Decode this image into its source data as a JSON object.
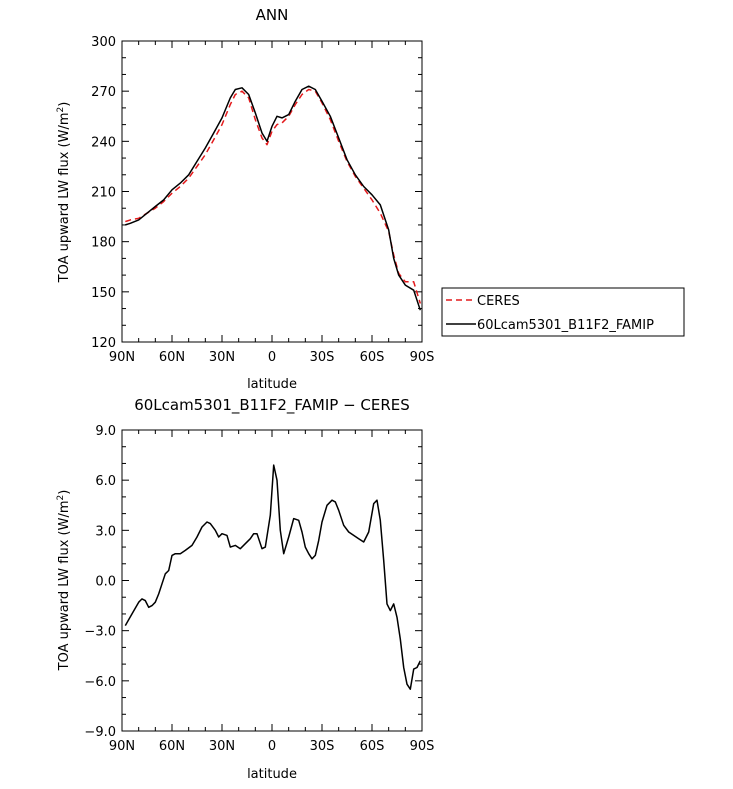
{
  "chart_data": [
    {
      "type": "line",
      "title": "ANN",
      "xlabel": "latitude",
      "ylabel": "TOA upward LW flux (W/m²)",
      "ylabel_base": "TOA upward LW flux (W/m",
      "ylabel_sup": "2",
      "ylabel_end": ")",
      "xlim": [
        90,
        -90
      ],
      "ylim": [
        120,
        300
      ],
      "xticks": [
        90,
        60,
        30,
        0,
        -30,
        -60,
        -90
      ],
      "xtick_labels": [
        "90N",
        "60N",
        "30N",
        "0",
        "30S",
        "60S",
        "90S"
      ],
      "yticks": [
        120,
        150,
        180,
        210,
        240,
        270,
        300
      ],
      "ytick_labels": [
        "120",
        "150",
        "180",
        "210",
        "240",
        "270",
        "300"
      ],
      "legend": {
        "placement": "right",
        "entries": [
          "CERES",
          "60Lcam5301_B11F2_FAMIP"
        ]
      },
      "series": [
        {
          "name": "CERES",
          "color": "#e41a1c",
          "dash": true,
          "x": [
            88,
            85,
            80,
            75,
            70,
            65,
            60,
            55,
            50,
            45,
            40,
            35,
            30,
            25,
            22,
            18,
            14,
            10,
            6,
            3,
            0,
            -3,
            -6,
            -10,
            -14,
            -18,
            -22,
            -26,
            -30,
            -35,
            -40,
            -45,
            -50,
            -55,
            -60,
            -65,
            -70,
            -73,
            -76,
            -80,
            -85,
            -89
          ],
          "y": [
            192,
            193,
            194,
            197,
            200,
            204,
            209,
            213,
            218,
            225,
            232,
            241,
            250,
            262,
            268,
            270,
            266,
            253,
            242,
            238,
            246,
            250,
            251,
            255,
            262,
            268,
            271,
            270,
            263,
            253,
            240,
            228,
            219,
            212,
            205,
            197,
            186,
            172,
            161,
            156,
            156,
            143
          ]
        },
        {
          "name": "60Lcam5301_B11F2_FAMIP",
          "color": "#000000",
          "dash": false,
          "x": [
            88,
            85,
            80,
            75,
            70,
            65,
            60,
            55,
            50,
            45,
            40,
            35,
            30,
            25,
            22,
            18,
            14,
            10,
            6,
            3,
            0,
            -3,
            -6,
            -10,
            -14,
            -18,
            -22,
            -26,
            -30,
            -35,
            -40,
            -45,
            -50,
            -55,
            -60,
            -65,
            -70,
            -73,
            -76,
            -80,
            -85,
            -89
          ],
          "y": [
            190,
            191,
            193,
            197,
            201,
            205,
            211,
            215,
            220,
            228,
            236,
            245,
            254,
            266,
            271,
            272,
            268,
            257,
            245,
            240,
            249,
            255,
            254,
            256,
            264,
            271,
            273,
            271,
            264,
            255,
            242,
            229,
            220,
            213,
            208,
            202,
            187,
            170,
            160,
            154,
            151,
            139
          ]
        }
      ]
    },
    {
      "type": "line",
      "title": "60Lcam5301_B11F2_FAMIP − CERES",
      "xlabel": "latitude",
      "ylabel": "TOA upward LW flux (W/m²)",
      "ylabel_base": "TOA upward LW flux (W/m",
      "ylabel_sup": "2",
      "ylabel_end": ")",
      "xlim": [
        90,
        -90
      ],
      "ylim": [
        -9,
        9
      ],
      "xticks": [
        90,
        60,
        30,
        0,
        -30,
        -60,
        -90
      ],
      "xtick_labels": [
        "90N",
        "60N",
        "30N",
        "0",
        "30S",
        "60S",
        "90S"
      ],
      "yticks": [
        -9,
        -6,
        -3,
        0,
        3,
        6,
        9
      ],
      "ytick_labels": [
        "−9.0",
        "−6.0",
        "−3.0",
        "0.0",
        "3.0",
        "6.0",
        "9.0"
      ],
      "series": [
        {
          "color": "#000000",
          "dash": false,
          "x": [
            88,
            84,
            80,
            78,
            76,
            74,
            72,
            70,
            68,
            66,
            64,
            62,
            60,
            58,
            55,
            52,
            48,
            45,
            42,
            39,
            37,
            34,
            32,
            30,
            27,
            25,
            22,
            19,
            16,
            13,
            11,
            9,
            6,
            4,
            1,
            -1,
            -3,
            -5,
            -7,
            -10,
            -13,
            -16,
            -18,
            -20,
            -22,
            -24,
            -26,
            -28,
            -30,
            -33,
            -36,
            -38,
            -40,
            -43,
            -46,
            -49,
            -52,
            -55,
            -58,
            -61,
            -63,
            -65,
            -67,
            -69,
            -71,
            -73,
            -75,
            -77,
            -79,
            -81,
            -83,
            -85,
            -87,
            -89
          ],
          "y": [
            -2.7,
            -2.0,
            -1.3,
            -1.1,
            -1.2,
            -1.6,
            -1.5,
            -1.3,
            -0.8,
            -0.2,
            0.4,
            0.6,
            1.5,
            1.6,
            1.6,
            1.8,
            2.1,
            2.6,
            3.2,
            3.5,
            3.4,
            3.0,
            2.6,
            2.8,
            2.7,
            2.0,
            2.1,
            1.9,
            2.2,
            2.5,
            2.8,
            2.8,
            1.9,
            2.0,
            3.9,
            6.9,
            6.0,
            3.0,
            1.6,
            2.6,
            3.7,
            3.6,
            2.9,
            2.0,
            1.6,
            1.3,
            1.5,
            2.4,
            3.5,
            4.5,
            4.8,
            4.7,
            4.2,
            3.3,
            2.9,
            2.7,
            2.5,
            2.3,
            2.9,
            4.6,
            4.8,
            3.6,
            1.2,
            -1.4,
            -1.8,
            -1.4,
            -2.2,
            -3.5,
            -5.2,
            -6.2,
            -6.5,
            -5.3,
            -5.2,
            -4.8
          ]
        }
      ]
    }
  ]
}
